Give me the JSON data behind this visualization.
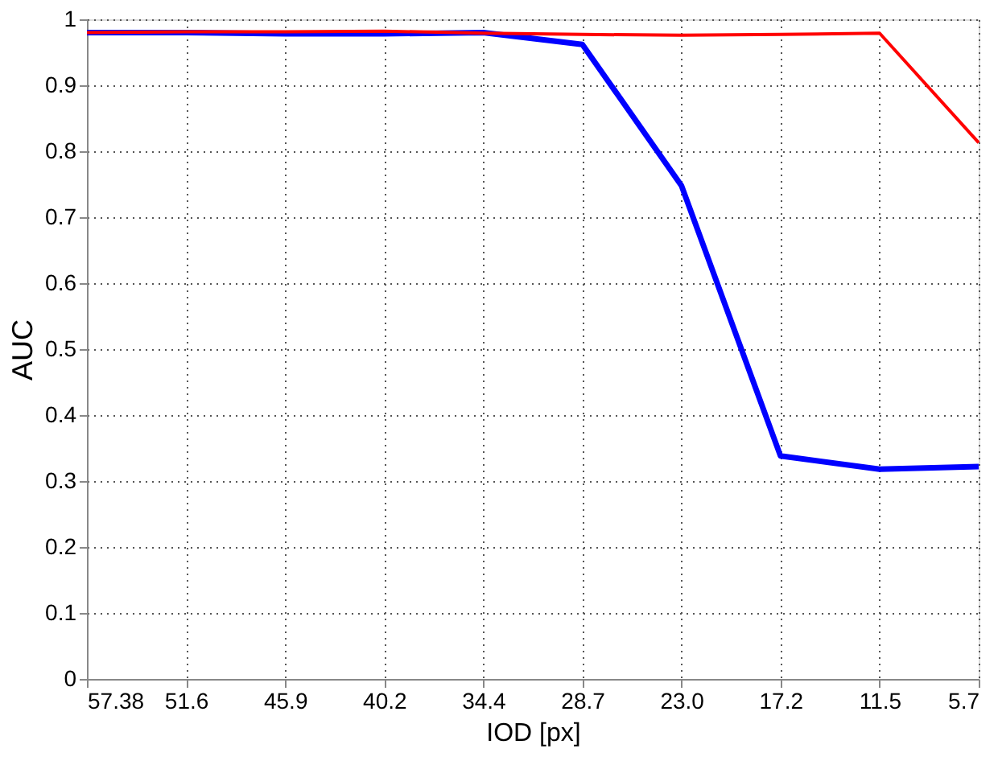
{
  "chart_data": {
    "type": "line",
    "xlabel": "IOD [px]",
    "ylabel": "AUC",
    "categories": [
      "57.38",
      "51.6",
      "45.9",
      "40.2",
      "34.4",
      "28.7",
      "23.0",
      "17.2",
      "11.5",
      "5.7"
    ],
    "series": [
      {
        "color": "#0000ff",
        "values": [
          0.98,
          0.98,
          0.978,
          0.978,
          0.98,
          0.962,
          0.748,
          0.338,
          0.318,
          0.322
        ]
      },
      {
        "color": "#ff0000",
        "values": [
          0.98,
          0.981,
          0.981,
          0.982,
          0.979,
          0.977,
          0.976,
          0.977,
          0.979,
          0.813
        ]
      }
    ],
    "ylim": [
      0,
      1
    ],
    "yticks": [
      0,
      0.1,
      0.2,
      0.3,
      0.4,
      0.5,
      0.6,
      0.7,
      0.8,
      0.9,
      1
    ],
    "grid": true,
    "legend": false,
    "marker": "none",
    "line_style": "solid"
  }
}
